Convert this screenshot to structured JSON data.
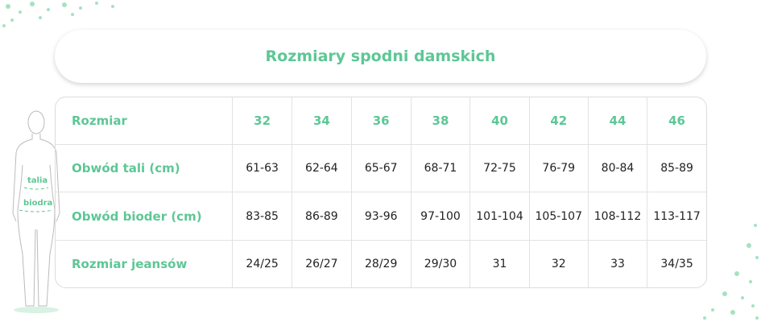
{
  "title": "Rozmiary spodni damskich",
  "accent_color": "#5dc795",
  "figure": {
    "waist_label": "talia",
    "hips_label": "biodra"
  },
  "table": {
    "header": {
      "label": "Rozmiar",
      "sizes": [
        "32",
        "34",
        "36",
        "38",
        "40",
        "42",
        "44",
        "46"
      ]
    },
    "rows": [
      {
        "label": "Obwód tali (cm)",
        "values": [
          "61-63",
          "62-64",
          "65-67",
          "68-71",
          "72-75",
          "76-79",
          "80-84",
          "85-89"
        ]
      },
      {
        "label": "Obwód bioder (cm)",
        "values": [
          "83-85",
          "86-89",
          "93-96",
          "97-100",
          "101-104",
          "105-107",
          "108-112",
          "113-117"
        ]
      },
      {
        "label": "Rozmiar jeansów",
        "values": [
          "24/25",
          "26/27",
          "28/29",
          "29/30",
          "31",
          "32",
          "33",
          "34/35"
        ]
      }
    ]
  }
}
